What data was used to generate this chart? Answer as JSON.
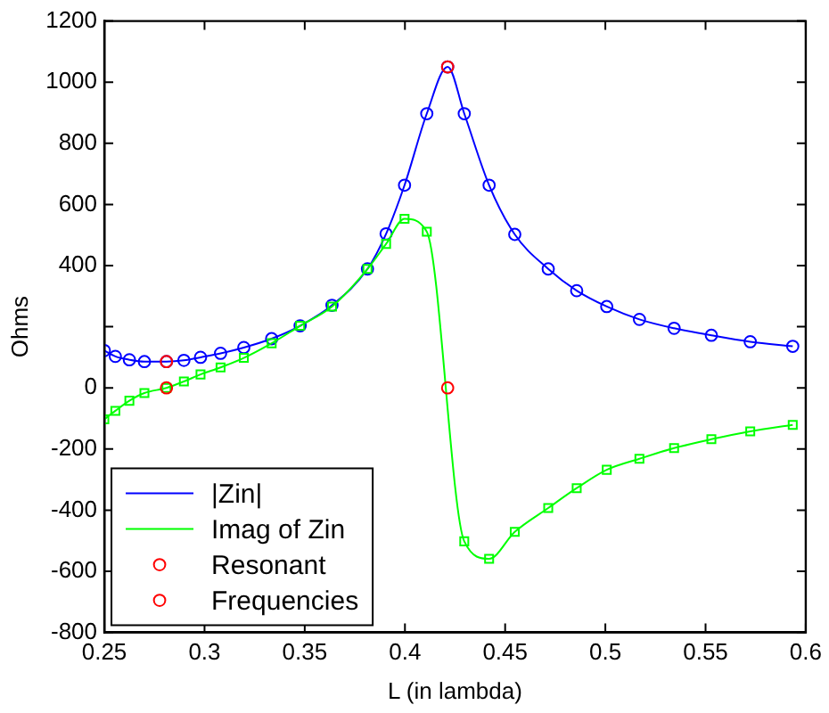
{
  "chart_data": {
    "type": "line",
    "xlabel": "L (in lambda)",
    "ylabel": "Ohms",
    "xlim": [
      0.25,
      0.6
    ],
    "xticks": [
      0.25,
      0.3,
      0.35,
      0.4,
      0.45,
      0.5,
      0.55,
      0.6
    ],
    "ylim": [
      -800,
      1200
    ],
    "yticks": [
      -800,
      -600,
      -400,
      -200,
      0,
      {
        "value": 200,
        "label": null
      },
      400,
      600,
      800,
      1000,
      1200
    ],
    "grid": false,
    "legend": "bottom left",
    "series": [
      {
        "name": "|Zin|",
        "color": "#0000ff",
        "marker": "circle",
        "x": [
          0.25,
          0.2555,
          0.2625,
          0.27,
          0.281,
          0.2897,
          0.298,
          0.308,
          0.3196,
          0.3335,
          0.3477,
          0.3636,
          0.3813,
          0.3906,
          0.3998,
          0.4109,
          0.4213,
          0.4296,
          0.442,
          0.4548,
          0.4715,
          0.4857,
          0.5007,
          0.517,
          0.5343,
          0.5529,
          0.5723,
          0.5935
        ],
        "values": [
          122,
          103,
          92,
          86,
          86,
          90,
          100,
          113,
          132,
          161,
          203,
          270,
          389,
          504,
          663,
          897,
          1050,
          897,
          663,
          502,
          389,
          318,
          266,
          224,
          195,
          172,
          151,
          136
        ]
      },
      {
        "name": "Imag of Zin",
        "color": "#00ff00",
        "marker": "square",
        "x": [
          0.25,
          0.2555,
          0.2625,
          0.27,
          0.281,
          0.2897,
          0.298,
          0.308,
          0.3196,
          0.3335,
          0.3477,
          0.3636,
          0.3813,
          0.3906,
          0.3998,
          0.4109,
          0.4296,
          0.442,
          0.4548,
          0.4715,
          0.4857,
          0.5007,
          0.517,
          0.5343,
          0.5529,
          0.5723,
          0.5935
        ],
        "values": [
          -103,
          -75,
          -42,
          -17,
          0,
          21,
          44,
          67,
          98,
          146,
          203,
          266,
          389,
          471,
          553,
          511,
          -502,
          -559,
          -471,
          -393,
          -328,
          -268,
          -232,
          -197,
          -168,
          -142,
          -121
        ]
      },
      {
        "name": "Resonant",
        "type": "scatter",
        "color": "#ff0000",
        "marker": "circle",
        "x": [
          0.281,
          0.4213
        ],
        "values": [
          86,
          1050
        ]
      },
      {
        "name": "Frequencies",
        "type": "scatter",
        "color": "#ff0000",
        "marker": "circle",
        "x": [
          0.281,
          0.4213
        ],
        "values": [
          0,
          0
        ]
      }
    ]
  }
}
